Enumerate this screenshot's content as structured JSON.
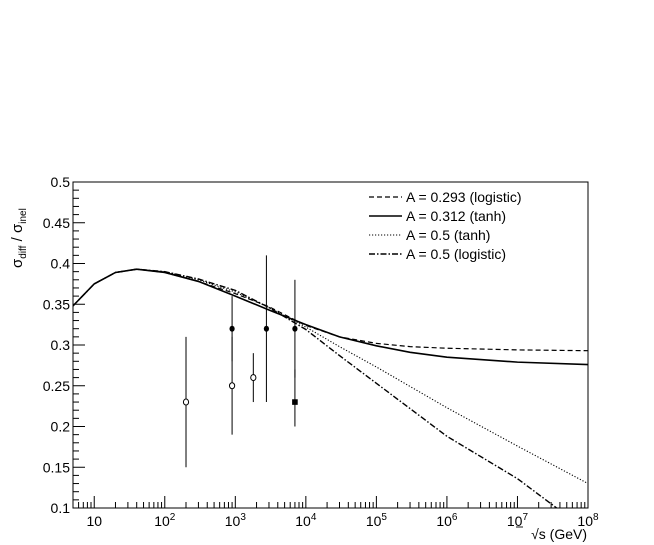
{
  "chart_data": {
    "type": "line",
    "xscale": "log",
    "xlim": [
      5,
      100000000
    ],
    "ylim": [
      0.1,
      0.5
    ],
    "grid": false,
    "legend_position": "top-right",
    "xlabel_parts": {
      "root": "√",
      "text": "s (GeV)"
    },
    "ylabel_parts": {
      "s1": "σ",
      "sub1": "diff",
      "slash": " / ",
      "s2": "σ",
      "sub2": "inel"
    },
    "xticks": [
      {
        "value": 10,
        "base": "10",
        "exp": ""
      },
      {
        "value": 100,
        "base": "10",
        "exp": "2"
      },
      {
        "value": 1000,
        "base": "10",
        "exp": "3"
      },
      {
        "value": 10000,
        "base": "10",
        "exp": "4"
      },
      {
        "value": 100000,
        "base": "10",
        "exp": "5"
      },
      {
        "value": 1000000,
        "base": "10",
        "exp": "6"
      },
      {
        "value": 10000000,
        "base": "10",
        "exp": "7"
      },
      {
        "value": 100000000,
        "base": "10",
        "exp": "8"
      }
    ],
    "yticks": [
      "0.1",
      "0.15",
      "0.2",
      "0.25",
      "0.3",
      "0.35",
      "0.4",
      "0.45",
      "0.5"
    ],
    "series": [
      {
        "name": "A = 0.293 (logistic)",
        "dash": "dashed",
        "points": [
          [
            5,
            0.348
          ],
          [
            10,
            0.375
          ],
          [
            20,
            0.389
          ],
          [
            40,
            0.393
          ],
          [
            100,
            0.389
          ],
          [
            300,
            0.378
          ],
          [
            1000,
            0.363
          ],
          [
            3000,
            0.347
          ],
          [
            10000,
            0.324
          ],
          [
            30000,
            0.31
          ],
          [
            100000,
            0.302
          ],
          [
            300000,
            0.298
          ],
          [
            1000000,
            0.296
          ],
          [
            10000000,
            0.294
          ],
          [
            100000000,
            0.293
          ]
        ]
      },
      {
        "name": "A = 0.312 (tanh)",
        "dash": "solid",
        "points": [
          [
            5,
            0.348
          ],
          [
            10,
            0.375
          ],
          [
            20,
            0.389
          ],
          [
            40,
            0.393
          ],
          [
            100,
            0.389
          ],
          [
            300,
            0.378
          ],
          [
            1000,
            0.36
          ],
          [
            3000,
            0.343
          ],
          [
            10000,
            0.325
          ],
          [
            30000,
            0.31
          ],
          [
            100000,
            0.299
          ],
          [
            300000,
            0.291
          ],
          [
            1000000,
            0.285
          ],
          [
            10000000,
            0.279
          ],
          [
            100000000,
            0.276
          ]
        ]
      },
      {
        "name": "A = 0.5 (tanh)",
        "dash": "dotted",
        "points": [
          [
            5,
            0.348
          ],
          [
            10,
            0.375
          ],
          [
            20,
            0.389
          ],
          [
            40,
            0.393
          ],
          [
            100,
            0.39
          ],
          [
            300,
            0.38
          ],
          [
            1000,
            0.365
          ],
          [
            3000,
            0.346
          ],
          [
            10000,
            0.322
          ],
          [
            30000,
            0.298
          ],
          [
            100000,
            0.273
          ],
          [
            1000000,
            0.223
          ],
          [
            10000000,
            0.176
          ],
          [
            100000000,
            0.13
          ]
        ]
      },
      {
        "name": "A = 0.5 (logistic)",
        "dash": "dashdot",
        "points": [
          [
            5,
            0.348
          ],
          [
            10,
            0.375
          ],
          [
            20,
            0.389
          ],
          [
            40,
            0.393
          ],
          [
            100,
            0.39
          ],
          [
            300,
            0.381
          ],
          [
            1000,
            0.367
          ],
          [
            3000,
            0.346
          ],
          [
            10000,
            0.319
          ],
          [
            30000,
            0.287
          ],
          [
            100000,
            0.253
          ],
          [
            300000,
            0.222
          ],
          [
            1000000,
            0.188
          ],
          [
            10000000,
            0.136
          ],
          [
            36000000,
            0.1
          ]
        ]
      }
    ],
    "points": [
      {
        "x": 200,
        "y": 0.23,
        "err_lo": 0.08,
        "err_hi": 0.08,
        "marker": "open-circle"
      },
      {
        "x": 900,
        "y": 0.32,
        "err_lo": 0.04,
        "err_hi": 0.04,
        "marker": "filled-circle"
      },
      {
        "x": 900,
        "y": 0.25,
        "err_lo": 0.06,
        "err_hi": 0.06,
        "marker": "open-circle"
      },
      {
        "x": 1800,
        "y": 0.26,
        "err_lo": 0.03,
        "err_hi": 0.03,
        "marker": "open-circle"
      },
      {
        "x": 2760,
        "y": 0.32,
        "err_lo": 0.09,
        "err_hi": 0.09,
        "marker": "filled-circle"
      },
      {
        "x": 7000,
        "y": 0.32,
        "err_lo": 0.06,
        "err_hi": 0.06,
        "marker": "filled-circle"
      },
      {
        "x": 7000,
        "y": 0.23,
        "err_lo": 0.03,
        "err_hi": 0.04,
        "marker": "filled-square"
      }
    ]
  }
}
